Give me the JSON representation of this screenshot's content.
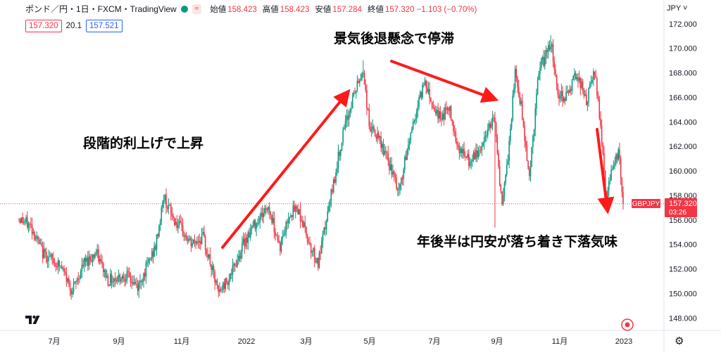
{
  "header": {
    "title": "ポンド／円・1日・FXCM・TradingView",
    "ohlc": [
      {
        "label": "始値",
        "value": "158.423"
      },
      {
        "label": "高値",
        "value": "158.423"
      },
      {
        "label": "安値",
        "value": "157.284"
      },
      {
        "label": "終値",
        "value": "157.320 −1.103 (−0.70%)"
      }
    ],
    "wave_label": "≈",
    "bid": "157.320",
    "spread": "20.1",
    "ask": "157.521"
  },
  "currency": "JPY ˅",
  "annotations": {
    "rise": "段階的利上げで上昇",
    "stagnation": "景気後退懸念で停滞",
    "fall": "年後半は円安が落ち着き下落気味"
  },
  "price_tag": {
    "symbol": "GBPJPY",
    "price": "157.320",
    "countdown": "03:26"
  },
  "colors": {
    "up": "#089981",
    "down": "#f23645",
    "arrow": "#ff1a1a",
    "bg": "#ffffff"
  },
  "chart_data": {
    "type": "candlestick",
    "x_tick_labels": [
      "7月",
      "9月",
      "11月",
      "2022",
      "3月",
      "5月",
      "7月",
      "9月",
      "11月",
      "2023"
    ],
    "y_ticks": [
      "148.000",
      "150.000",
      "152.000",
      "154.000",
      "156.000",
      "158.000",
      "160.000",
      "162.000",
      "164.000",
      "166.000",
      "168.000",
      "170.000",
      "172.000"
    ],
    "ylim": [
      146.8,
      173.0
    ],
    "last_price": 157.32,
    "path_points": [
      [
        0,
        156.1
      ],
      [
        10,
        155.5
      ],
      [
        20,
        153.3
      ],
      [
        35,
        152.2
      ],
      [
        45,
        150.2
      ],
      [
        55,
        152.5
      ],
      [
        65,
        153.3
      ],
      [
        75,
        151.1
      ],
      [
        90,
        151.5
      ],
      [
        100,
        150.5
      ],
      [
        115,
        153.8
      ],
      [
        122,
        157.9
      ],
      [
        130,
        156.1
      ],
      [
        145,
        154.0
      ],
      [
        155,
        154.6
      ],
      [
        168,
        150.0
      ],
      [
        180,
        151.8
      ],
      [
        190,
        154.3
      ],
      [
        200,
        155.9
      ],
      [
        210,
        157.1
      ],
      [
        220,
        153.8
      ],
      [
        228,
        156.6
      ],
      [
        235,
        156.9
      ],
      [
        245,
        154.0
      ],
      [
        252,
        152.4
      ],
      [
        262,
        157.5
      ],
      [
        272,
        162.6
      ],
      [
        282,
        166.2
      ],
      [
        290,
        168.2
      ],
      [
        295,
        163.7
      ],
      [
        305,
        162.2
      ],
      [
        312,
        160.5
      ],
      [
        320,
        158.2
      ],
      [
        330,
        163.1
      ],
      [
        342,
        167.5
      ],
      [
        348,
        165.5
      ],
      [
        355,
        164.3
      ],
      [
        362,
        165.2
      ],
      [
        370,
        162.0
      ],
      [
        380,
        160.6
      ],
      [
        390,
        162.0
      ],
      [
        400,
        164.8
      ],
      [
        407,
        157.0
      ],
      [
        412,
        161.0
      ],
      [
        418,
        168.0
      ],
      [
        423,
        165.3
      ],
      [
        430,
        159.5
      ],
      [
        438,
        168.1
      ],
      [
        448,
        170.5
      ],
      [
        455,
        166.0
      ],
      [
        463,
        166.3
      ],
      [
        470,
        168.1
      ],
      [
        478,
        165.6
      ],
      [
        485,
        168.1
      ],
      [
        490,
        163.8
      ],
      [
        495,
        157.5
      ],
      [
        500,
        160.6
      ],
      [
        505,
        161.6
      ],
      [
        509,
        157.3
      ]
    ]
  }
}
